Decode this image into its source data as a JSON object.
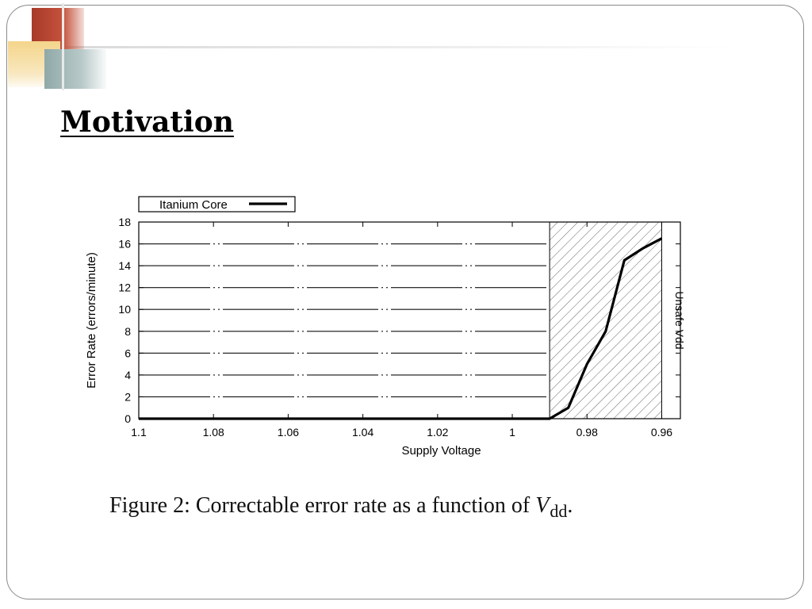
{
  "slide": {
    "title": "Motivation",
    "caption_prefix": "Figure 2: Correctable error rate as a function of",
    "caption_var": "V",
    "caption_sub": "dd",
    "caption_suffix": "."
  },
  "chart_data": {
    "type": "line",
    "series": [
      {
        "name": "Itanium Core",
        "color": "#000000",
        "x": [
          1.1,
          1.08,
          1.06,
          1.04,
          1.02,
          1.0,
          0.99,
          0.985,
          0.98,
          0.975,
          0.97,
          0.965,
          0.96
        ],
        "values": [
          0,
          0,
          0,
          0,
          0,
          0,
          0,
          1,
          5,
          8,
          14.5,
          15.6,
          16.5
        ]
      }
    ],
    "xlabel": "Supply Voltage",
    "ylabel": "Error Rate (errors/minute)",
    "xlim": [
      1.1,
      0.955
    ],
    "ylim": [
      0,
      18
    ],
    "x_reversed": true,
    "xticks": [
      1.1,
      1.08,
      1.06,
      1.04,
      1.02,
      1.0,
      0.98,
      0.96
    ],
    "xtick_labels": [
      "1.1",
      "1.08",
      "1.06",
      "1.04",
      "1.02",
      "1",
      "0.98",
      "0.96"
    ],
    "yticks": [
      0,
      2,
      4,
      6,
      8,
      10,
      12,
      14,
      16,
      18
    ],
    "ytick_labels": [
      "0",
      "2",
      "4",
      "6",
      "8",
      "10",
      "12",
      "14",
      "16",
      "18"
    ],
    "grid": true,
    "hatched_region": [
      0.99,
      0.96
    ],
    "annotation": "Unsafe Vdd",
    "legend_position": "top-left"
  }
}
